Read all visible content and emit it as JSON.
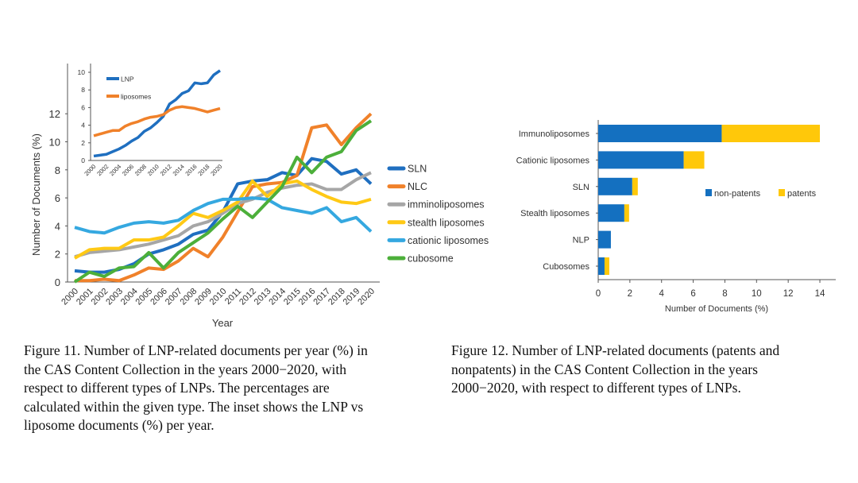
{
  "chart_data": [
    {
      "type": "line",
      "title": "",
      "xlabel": "Year",
      "ylabel": "Number of Documents (%)",
      "ylim": [
        0,
        12
      ],
      "yticks": [
        "0",
        "2",
        "4",
        "6",
        "8",
        "10",
        "12"
      ],
      "categories": [
        "2000",
        "2001",
        "2002",
        "2003",
        "2004",
        "2005",
        "2006",
        "2007",
        "2008",
        "2009",
        "2010",
        "2011",
        "2012",
        "2013",
        "2014",
        "2015",
        "2016",
        "2017",
        "2018",
        "2019",
        "2020"
      ],
      "legend_position": "right",
      "series": [
        {
          "name": "SLN",
          "color": "#1f6fc0",
          "values": [
            0.8,
            0.7,
            0.7,
            0.9,
            1.3,
            2.0,
            2.3,
            2.7,
            3.4,
            3.7,
            5.0,
            7.0,
            7.2,
            7.3,
            7.8,
            7.6,
            8.8,
            8.6,
            7.7,
            8.0,
            7.0
          ]
        },
        {
          "name": "NLC",
          "color": "#f0812a",
          "values": [
            0.1,
            0.1,
            0.2,
            0.1,
            0.5,
            1.0,
            0.9,
            1.5,
            2.4,
            1.8,
            3.2,
            5.0,
            6.8,
            7.0,
            7.1,
            7.6,
            11.0,
            11.2,
            9.8,
            11.0,
            12.0
          ]
        },
        {
          "name": "imminoliposomes",
          "color": "#a6a6a6",
          "values": [
            1.8,
            2.1,
            2.2,
            2.3,
            2.5,
            2.7,
            3.0,
            3.3,
            4.0,
            4.3,
            4.9,
            5.6,
            5.9,
            6.4,
            6.7,
            6.9,
            7.0,
            6.6,
            6.6,
            7.3,
            7.8
          ]
        },
        {
          "name": "stealth liposomes",
          "color": "#ffc915",
          "values": [
            1.7,
            2.3,
            2.4,
            2.4,
            3.0,
            3.0,
            3.2,
            4.0,
            4.9,
            4.6,
            5.1,
            5.7,
            7.2,
            6.1,
            7.0,
            7.2,
            6.6,
            6.1,
            5.7,
            5.6,
            5.9
          ]
        },
        {
          "name": "cationic liposomes",
          "color": "#35a8e0",
          "values": [
            3.9,
            3.6,
            3.5,
            3.9,
            4.2,
            4.3,
            4.2,
            4.4,
            5.1,
            5.6,
            5.9,
            5.9,
            6.0,
            5.9,
            5.3,
            5.1,
            4.9,
            5.3,
            4.3,
            4.6,
            3.6
          ]
        },
        {
          "name": "cubosome",
          "color": "#4caf3a",
          "values": [
            0.0,
            0.7,
            0.4,
            1.0,
            1.1,
            2.1,
            1.0,
            2.1,
            2.8,
            3.5,
            4.5,
            5.4,
            4.6,
            5.7,
            6.8,
            8.9,
            7.8,
            8.9,
            9.3,
            10.8,
            11.5
          ]
        }
      ],
      "inset": {
        "type": "line",
        "ylim": [
          0,
          10
        ],
        "yticks": [
          "0",
          "2",
          "4",
          "6",
          "8",
          "10"
        ],
        "xticks": [
          "2000",
          "2002",
          "2004",
          "2006",
          "2008",
          "2010",
          "2012",
          "2014",
          "2016",
          "2018",
          "2020"
        ],
        "legend_position": "top-left",
        "series": [
          {
            "name": "LNP",
            "color": "#1f6fc0",
            "values": [
              0.5,
              0.6,
              0.7,
              1.0,
              1.3,
              1.7,
              2.2,
              2.6,
              3.3,
              3.7,
              4.3,
              5.0,
              6.4,
              6.9,
              7.6,
              7.9,
              8.8,
              8.7,
              8.8,
              9.7,
              10.2
            ]
          },
          {
            "name": "liposomes",
            "color": "#f0812a",
            "values": [
              2.8,
              3.0,
              3.2,
              3.4,
              3.4,
              3.9,
              4.2,
              4.4,
              4.7,
              4.9,
              5.0,
              5.2,
              5.7,
              6.0,
              6.1,
              6.0,
              5.9,
              5.7,
              5.5,
              5.7,
              5.9
            ]
          }
        ]
      }
    },
    {
      "type": "bar",
      "orientation": "horizontal",
      "stacked": true,
      "xlabel": "Number of Documents (%)",
      "xlim": [
        0,
        14
      ],
      "xticks": [
        "0",
        "2",
        "4",
        "6",
        "8",
        "10",
        "12",
        "14"
      ],
      "categories": [
        "Immunoliposomes",
        "Cationic liposomes",
        "SLN",
        "Stealth liposomes",
        "NLP",
        "Cubosomes"
      ],
      "legend_position": "center-right",
      "series": [
        {
          "name": "non-patents",
          "color": "#1470c0",
          "values": [
            7.8,
            5.4,
            2.15,
            1.65,
            0.8,
            0.4
          ]
        },
        {
          "name": "patents",
          "color": "#ffc80a",
          "values": [
            6.2,
            1.3,
            0.35,
            0.3,
            0.0,
            0.3
          ]
        }
      ]
    }
  ],
  "captions": {
    "fig11": [
      "Figure 11. Number of LNP-related documents per year (%) in",
      "the CAS Content Collection in the years 2000−2020, with",
      "respect to different types of LNPs. The percentages are",
      "calculated within the given type. The inset shows the LNP vs",
      "liposome documents (%) per year."
    ],
    "fig12": [
      "Figure 12. Number of LNP-related documents (patents and",
      "nonpatents) in the CAS Content Collection in the years",
      "2000−2020, with respect to different types of LNPs."
    ]
  }
}
